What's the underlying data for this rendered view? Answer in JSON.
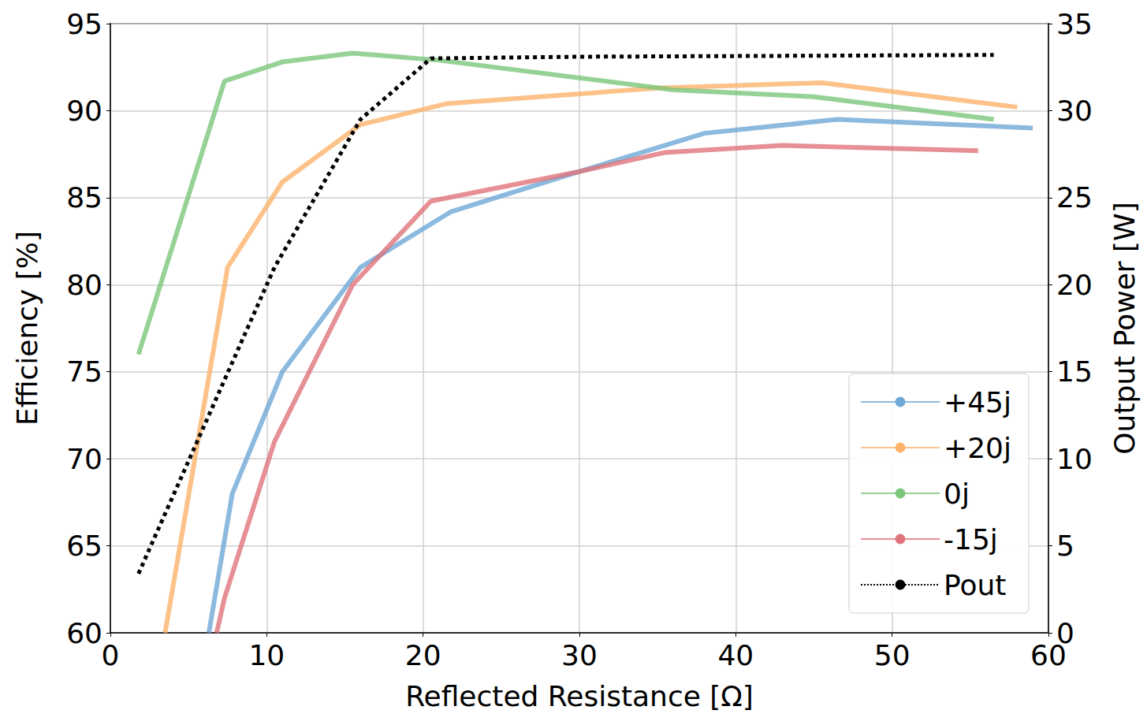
{
  "chart_data": {
    "type": "line",
    "x_label": "Reflected Resistance [Ω]",
    "y_label": "Efficiency [%]",
    "y2_label": "Output Power [W]",
    "xlim": [
      0,
      60
    ],
    "xticks": [
      0,
      10,
      20,
      30,
      40,
      50,
      60
    ],
    "ylim": [
      60,
      95
    ],
    "yticks": [
      60,
      65,
      70,
      75,
      80,
      85,
      90,
      95
    ],
    "y2lim": [
      0,
      35
    ],
    "y2ticks": [
      0,
      5,
      10,
      15,
      20,
      25,
      30,
      35
    ],
    "grid": true,
    "legend": "lower right",
    "series": [
      {
        "name": "+45j",
        "color": "#6fa8d6",
        "line_style": "solid",
        "x": [
          6.3,
          7.8,
          11,
          16,
          21.8,
          30,
          38,
          46.5,
          59
        ],
        "values": [
          60,
          68,
          75,
          81,
          84.2,
          86.5,
          88.7,
          89.5,
          89
        ]
      },
      {
        "name": "+20j",
        "color": "#fbb36b",
        "line_style": "solid",
        "x": [
          3.5,
          7.5,
          11,
          16,
          21.5,
          35,
          45.5,
          58
        ],
        "values": [
          60,
          81,
          85.9,
          89.2,
          90.4,
          91.3,
          91.6,
          90.2
        ]
      },
      {
        "name": "0j",
        "color": "#7cc67c",
        "line_style": "solid",
        "x": [
          1.8,
          7.3,
          11,
          15.5,
          21,
          36,
          45,
          56.5
        ],
        "values": [
          76,
          91.7,
          92.8,
          93.3,
          92.9,
          91.2,
          90.8,
          89.5
        ]
      },
      {
        "name": "-15j",
        "color": "#e0747b",
        "line_style": "solid",
        "x": [
          6.8,
          7.3,
          10.5,
          15.5,
          20.5,
          30,
          35.5,
          43,
          55.5
        ],
        "values": [
          60,
          62,
          71,
          80,
          84.8,
          86.5,
          87.6,
          88,
          87.7
        ]
      },
      {
        "name": "Pout",
        "color": "#000000",
        "line_style": "dotted",
        "axis": "y2",
        "x": [
          1.8,
          10.5,
          16,
          20.5,
          30,
          56.5
        ],
        "values": [
          3.4,
          21,
          29.5,
          33,
          33.1,
          33.2
        ]
      }
    ]
  }
}
